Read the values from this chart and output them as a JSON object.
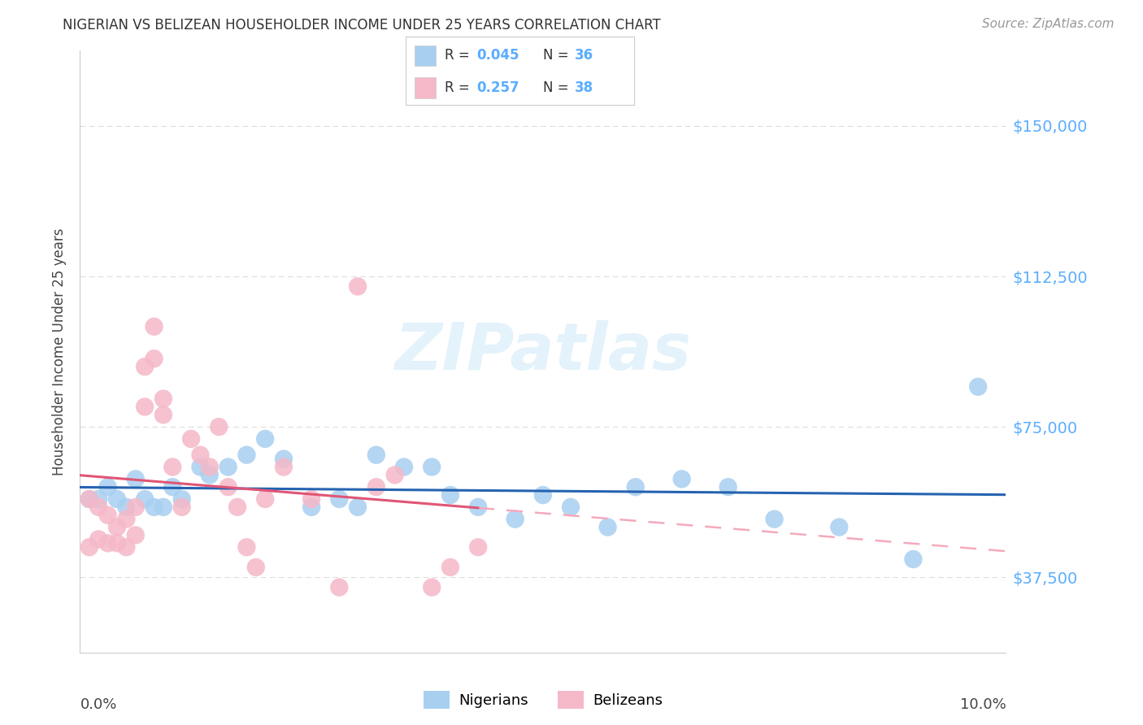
{
  "title": "NIGERIAN VS BELIZEAN HOUSEHOLDER INCOME UNDER 25 YEARS CORRELATION CHART",
  "source": "Source: ZipAtlas.com",
  "ylabel": "Householder Income Under 25 years",
  "y_tick_labels": [
    "$37,500",
    "$75,000",
    "$112,500",
    "$150,000"
  ],
  "y_tick_values": [
    37500,
    75000,
    112500,
    150000
  ],
  "x_range": [
    0.0,
    0.1
  ],
  "y_range": [
    18750,
    168750
  ],
  "watermark": "ZIPatlas",
  "legend_label_blue": "Nigerians",
  "legend_label_pink": "Belizeans",
  "blue_scatter_color": "#a8cff0",
  "pink_scatter_color": "#f5b8c8",
  "blue_line_color": "#2563b0",
  "pink_line_color": "#e05575",
  "pink_dashed_color": "#f4aabb",
  "bg_color": "#ffffff",
  "grid_color": "#dddddd",
  "legend_r_blue": "0.045",
  "legend_n_blue": "36",
  "legend_r_pink": "0.257",
  "legend_n_pink": "38",
  "nig_x": [
    0.001,
    0.002,
    0.003,
    0.004,
    0.005,
    0.006,
    0.007,
    0.008,
    0.009,
    0.01,
    0.011,
    0.013,
    0.014,
    0.016,
    0.018,
    0.02,
    0.022,
    0.025,
    0.028,
    0.03,
    0.032,
    0.035,
    0.038,
    0.04,
    0.043,
    0.047,
    0.05,
    0.053,
    0.057,
    0.06,
    0.065,
    0.07,
    0.075,
    0.082,
    0.09,
    0.097
  ],
  "nig_y": [
    57000,
    57000,
    60000,
    57000,
    55000,
    62000,
    57000,
    55000,
    55000,
    60000,
    57000,
    65000,
    63000,
    65000,
    68000,
    72000,
    67000,
    55000,
    57000,
    55000,
    68000,
    65000,
    65000,
    58000,
    55000,
    52000,
    58000,
    55000,
    50000,
    60000,
    62000,
    60000,
    52000,
    50000,
    42000,
    85000
  ],
  "bel_x": [
    0.001,
    0.001,
    0.002,
    0.002,
    0.003,
    0.003,
    0.004,
    0.004,
    0.005,
    0.005,
    0.006,
    0.006,
    0.007,
    0.007,
    0.008,
    0.008,
    0.009,
    0.009,
    0.01,
    0.011,
    0.012,
    0.013,
    0.014,
    0.015,
    0.016,
    0.017,
    0.018,
    0.019,
    0.02,
    0.022,
    0.025,
    0.028,
    0.03,
    0.032,
    0.034,
    0.038,
    0.04,
    0.043
  ],
  "bel_y": [
    57000,
    45000,
    55000,
    47000,
    53000,
    46000,
    50000,
    46000,
    52000,
    45000,
    55000,
    48000,
    90000,
    80000,
    100000,
    92000,
    78000,
    82000,
    65000,
    55000,
    72000,
    68000,
    65000,
    75000,
    60000,
    55000,
    45000,
    40000,
    57000,
    65000,
    57000,
    35000,
    110000,
    60000,
    63000,
    35000,
    40000,
    45000
  ]
}
